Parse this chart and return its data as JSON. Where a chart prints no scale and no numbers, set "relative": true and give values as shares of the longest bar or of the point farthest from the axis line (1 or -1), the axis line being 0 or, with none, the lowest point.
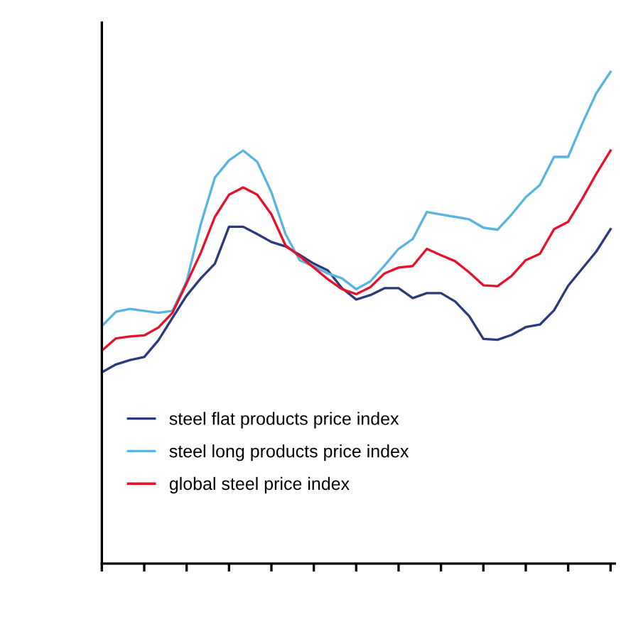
{
  "chart_data": {
    "type": "line",
    "relative": true,
    "legend": "bottom left",
    "grid": false,
    "categories": [
      null,
      null,
      null,
      null,
      null,
      null,
      null,
      null,
      null,
      null,
      null,
      null,
      null,
      null,
      null,
      null,
      null,
      null,
      null,
      null,
      null,
      null,
      null,
      null,
      null,
      null,
      null,
      null,
      null,
      null,
      null,
      null,
      null,
      null,
      null,
      null,
      null
    ],
    "series": [
      {
        "name": "steel flat products price index",
        "color": "#2b3a7a",
        "values": [
          0.389,
          0.405,
          0.414,
          0.42,
          0.454,
          0.5,
          0.545,
          0.58,
          0.61,
          0.685,
          0.685,
          0.67,
          0.654,
          0.645,
          0.628,
          0.61,
          0.596,
          0.56,
          0.537,
          0.546,
          0.56,
          0.56,
          0.54,
          0.55,
          0.55,
          0.533,
          0.503,
          0.457,
          0.455,
          0.465,
          0.481,
          0.486,
          0.515,
          0.565,
          0.6,
          0.635,
          0.68
        ]
      },
      {
        "name": "steel long products price index",
        "color": "#5ab4e0",
        "values": [
          0.483,
          0.512,
          0.518,
          0.514,
          0.51,
          0.514,
          0.574,
          0.69,
          0.785,
          0.82,
          0.84,
          0.817,
          0.755,
          0.67,
          0.617,
          0.604,
          0.59,
          0.58,
          0.558,
          0.574,
          0.606,
          0.64,
          0.66,
          0.715,
          0.71,
          0.705,
          0.7,
          0.683,
          0.679,
          0.71,
          0.745,
          0.77,
          0.827,
          0.827,
          0.895,
          0.957,
          1.0
        ]
      },
      {
        "name": "global steel price index",
        "color": "#e8102a",
        "values": [
          0.433,
          0.458,
          0.462,
          0.464,
          0.48,
          0.51,
          0.57,
          0.632,
          0.705,
          0.75,
          0.765,
          0.75,
          0.71,
          0.647,
          0.625,
          0.602,
          0.578,
          0.558,
          0.548,
          0.562,
          0.59,
          0.602,
          0.605,
          0.64,
          0.627,
          0.615,
          0.592,
          0.566,
          0.564,
          0.585,
          0.617,
          0.63,
          0.68,
          0.695,
          0.742,
          0.793,
          0.84
        ]
      }
    ]
  }
}
